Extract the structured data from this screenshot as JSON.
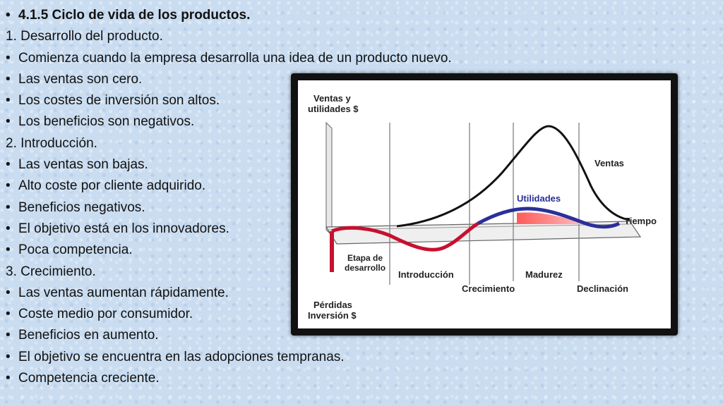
{
  "slide": {
    "items": [
      {
        "mark": "•",
        "text": "4.1.5 Ciclo de vida de los productos.",
        "bold": true
      },
      {
        "mark": "",
        "text": "1. Desarrollo del producto."
      },
      {
        "mark": "•",
        "text": "Comienza cuando la empresa desarrolla una idea de un producto nuevo."
      },
      {
        "mark": "•",
        "text": "Las ventas son cero."
      },
      {
        "mark": "•",
        "text": "Los costes de inversión son altos."
      },
      {
        "mark": "•",
        "text": "Los beneficios son negativos."
      },
      {
        "mark": "",
        "text": "2. Introducción."
      },
      {
        "mark": "•",
        "text": "Las ventas son bajas."
      },
      {
        "mark": "•",
        "text": "Alto coste por cliente adquirido."
      },
      {
        "mark": "•",
        "text": "Beneficios negativos."
      },
      {
        "mark": "•",
        "text": "El objetivo está en los innovadores."
      },
      {
        "mark": "•",
        "text": "Poca competencia."
      },
      {
        "mark": "",
        "text": "3. Crecimiento."
      },
      {
        "mark": "•",
        "text": "Las ventas aumentan rápidamente."
      },
      {
        "mark": "•",
        "text": "Coste medio por consumidor."
      },
      {
        "mark": "•",
        "text": "Beneficios en aumento."
      },
      {
        "mark": "•",
        "text": "El objetivo se encuentra en las adopciones tempranas."
      },
      {
        "mark": "•",
        "text": "Competencia creciente."
      }
    ]
  },
  "diagram": {
    "y_label_top": [
      "Ventas y",
      "utilidades $"
    ],
    "y_label_bottom": [
      "Pérdidas",
      "Inversión $"
    ],
    "x_label": "Tiempo",
    "curve_sales_label": "Ventas",
    "curve_profit_label": "Utilidades",
    "stage_labels": [
      "Etapa de",
      "desarrollo"
    ],
    "stages": [
      "Introducción",
      "Crecimiento",
      "Madurez",
      "Declinación"
    ],
    "colors": {
      "sales": "#111111",
      "profit_blue": "#2a2f9a",
      "profit_red": "#c8102e",
      "area_red": "#e63946"
    }
  }
}
